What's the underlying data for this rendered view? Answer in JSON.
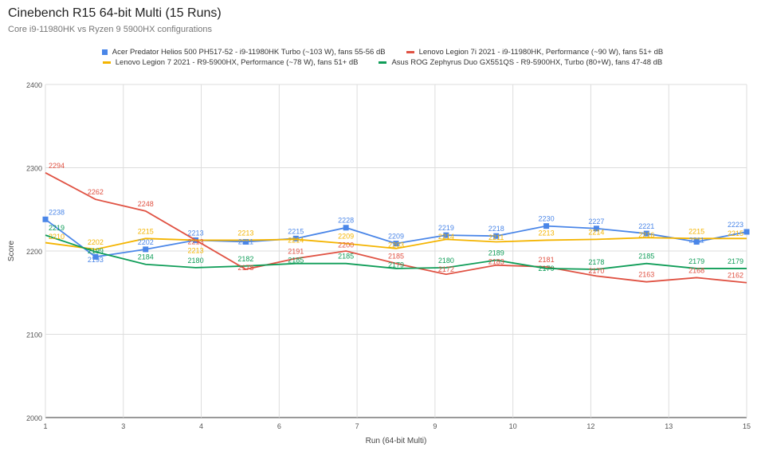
{
  "chart_data": {
    "type": "line",
    "title": "Cinebench R15 64-bit Multi (15 Runs)",
    "subtitle": "Core i9-11980HK vs Ryzen 9 5900HX configurations",
    "xlabel": "Run (64-bit Multi)",
    "ylabel": "Score",
    "xlim": [
      1,
      15
    ],
    "ylim": [
      2000,
      2400
    ],
    "x_tick_labels": [
      "1",
      "3",
      "4",
      "6",
      "7",
      "9",
      "10",
      "12",
      "13",
      "15"
    ],
    "y_ticks": [
      2000,
      2100,
      2200,
      2300,
      2400
    ],
    "grid": true,
    "legend_position": "top",
    "x": [
      1,
      2,
      3,
      4,
      5,
      6,
      7,
      8,
      9,
      10,
      11,
      12,
      13,
      14,
      15
    ],
    "series": [
      {
        "name": "Acer Predator Helios 500 PH517-52 - i9-11980HK Turbo (~103 W), fans 55-56 dB",
        "color": "#4a86e8",
        "marker": "square",
        "values": [
          2238,
          2193,
          2202,
          2213,
          2211,
          2215,
          2228,
          2209,
          2219,
          2218,
          2230,
          2227,
          2221,
          2211,
          2223
        ]
      },
      {
        "name": "Lenovo Legion 7i 2021 - i9-11980HK, Performance (~90 W), fans 51+ dB",
        "color": "#e05243",
        "marker": "none",
        "values": [
          2294,
          2262,
          2248,
          2213,
          2178,
          2191,
          2200,
          2185,
          2172,
          2183,
          2181,
          2170,
          2163,
          2168,
          2162
        ]
      },
      {
        "name": "Lenovo Legion 7 2021 - R9-5900HX, Performance (~78 W), fans 51+ dB",
        "color": "#f4b400",
        "marker": "none",
        "values": [
          2210,
          2202,
          2215,
          2213,
          2213,
          2214,
          2209,
          2203,
          2214,
          2211,
          2213,
          2214,
          2216,
          2215,
          2215
        ]
      },
      {
        "name": "Asus ROG Zephyrus Duo GX551QS - R9-5900HX, Turbo (80+W), fans 47-48 dB",
        "color": "#0f9d58",
        "marker": "none",
        "values": [
          2219,
          2199,
          2184,
          2180,
          2182,
          2185,
          2185,
          2179,
          2180,
          2189,
          2179,
          2178,
          2185,
          2179,
          2179
        ]
      }
    ]
  }
}
